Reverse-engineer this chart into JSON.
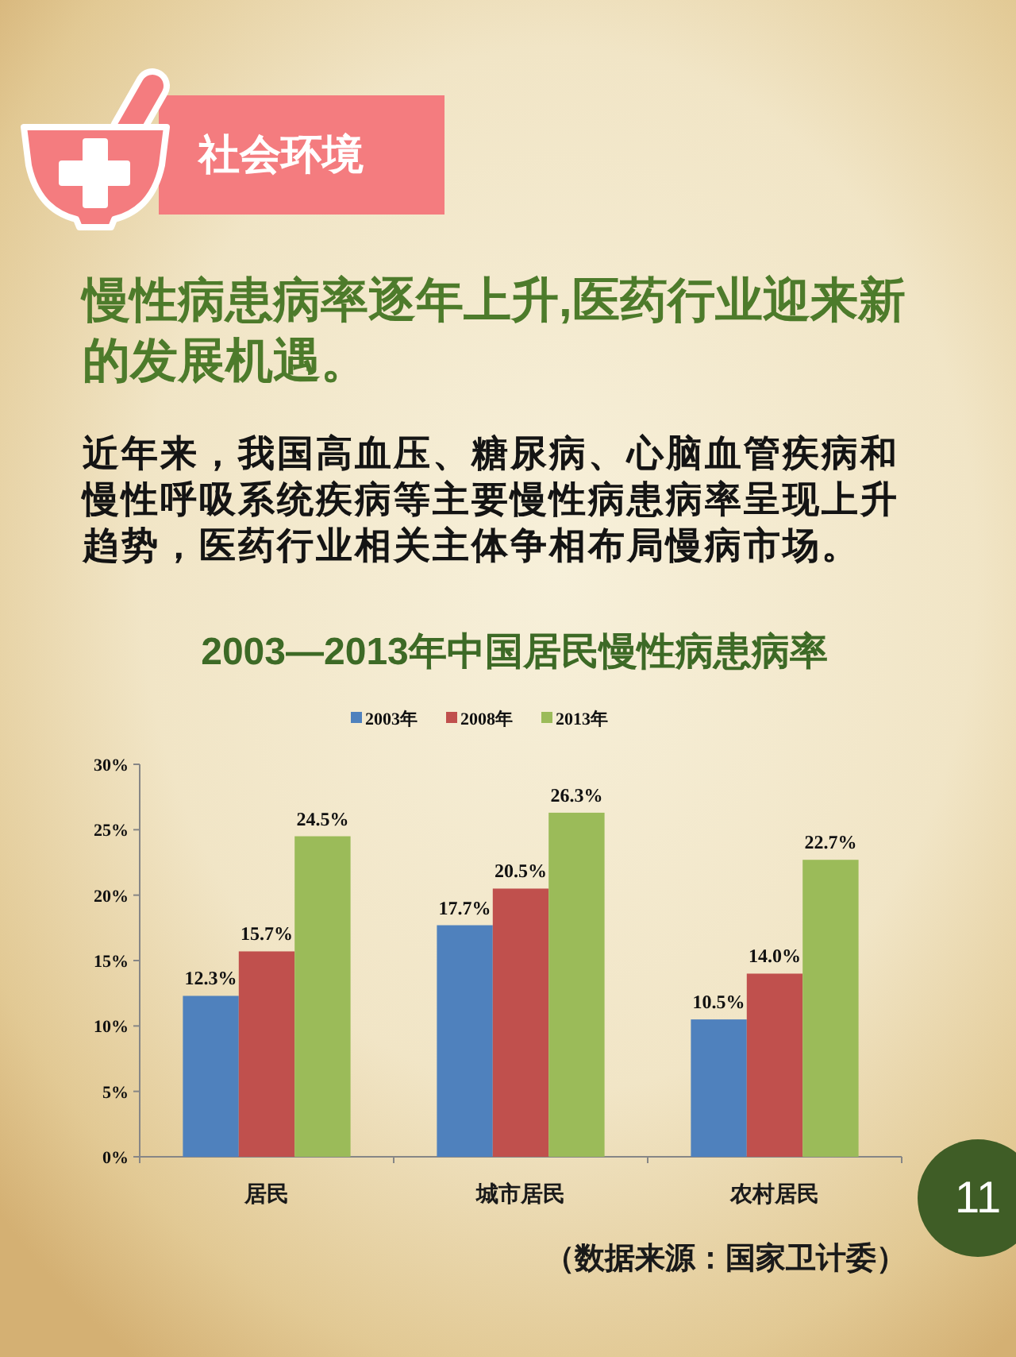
{
  "chart_data": {
    "type": "bar",
    "title": "2003—2013年中国居民慢性病患病率",
    "categories": [
      "居民",
      "城市居民",
      "农村居民"
    ],
    "series": [
      {
        "name": "2003年",
        "color": "#4f81bd",
        "values": [
          12.3,
          17.7,
          10.5
        ],
        "value_labels": [
          "12.3%",
          "17.7%",
          "10.5%"
        ]
      },
      {
        "name": "2008年",
        "color": "#c0504d",
        "values": [
          15.7,
          20.5,
          14.0
        ],
        "value_labels": [
          "15.7%",
          "20.5%",
          "14.0%"
        ]
      },
      {
        "name": "2013年",
        "color": "#9bbb59",
        "values": [
          24.5,
          26.3,
          22.7
        ],
        "value_labels": [
          "24.5%",
          "26.3%",
          "22.7%"
        ]
      }
    ],
    "ylim": [
      0,
      30
    ],
    "yticks": [
      {
        "value": 0,
        "label": "0%"
      },
      {
        "value": 5,
        "label": "5%"
      },
      {
        "value": 10,
        "label": "10%"
      },
      {
        "value": 15,
        "label": "15%"
      },
      {
        "value": 20,
        "label": "20%"
      },
      {
        "value": 25,
        "label": "25%"
      },
      {
        "value": 30,
        "label": "30%"
      }
    ],
    "legend": "top",
    "annotations": [
      "社会环境",
      "慢性病患病率逐年上升,医药行业迎来新的发展机遇。",
      "近年来，我国高血压、糖尿病、心脑血管疾病和慢性呼吸系统疾病等主要慢性病患病率呈现上升趋势，医药行业相关主体争相布局慢病市场。",
      "（数据来源：国家卫计委）",
      "11"
    ]
  }
}
